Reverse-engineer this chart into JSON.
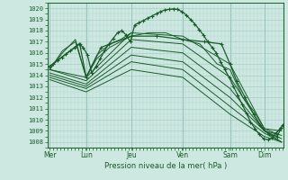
{
  "bg_color": "#cce8e0",
  "grid_color_minor": "#b8d8d0",
  "grid_color_major": "#a0c8c0",
  "line_color": "#1a5c2a",
  "xlabel_text": "Pression niveau de la mer( hPa )",
  "yticks": [
    1008,
    1009,
    1010,
    1011,
    1012,
    1013,
    1014,
    1015,
    1016,
    1017,
    1018,
    1019,
    1020
  ],
  "ylim": [
    1007.5,
    1020.5
  ],
  "day_labels": [
    "Mer",
    "Lun",
    "Jeu",
    "Ven",
    "Sam",
    "Dim"
  ],
  "day_positions": [
    0.0,
    0.85,
    1.9,
    3.1,
    4.2,
    5.0
  ],
  "xlim": [
    -0.05,
    5.45
  ],
  "vline_positions": [
    0.0,
    0.85,
    1.9,
    3.1,
    4.2,
    5.0
  ],
  "lines": [
    {
      "x": [
        0.0,
        0.08,
        0.18,
        0.28,
        0.38,
        0.48,
        0.58,
        0.68,
        0.78,
        0.88,
        0.98,
        1.08,
        1.18,
        1.28,
        1.38,
        1.48,
        1.58,
        1.68,
        1.78,
        1.88,
        1.98,
        2.08,
        2.18,
        2.28,
        2.38,
        2.48,
        2.58,
        2.68,
        2.78,
        2.88,
        2.98,
        3.08,
        3.18,
        3.28,
        3.38,
        3.48,
        3.58,
        3.68,
        3.78,
        3.88,
        3.98,
        4.08,
        4.18,
        4.28,
        4.38,
        4.48,
        4.58,
        4.68,
        4.78,
        4.88,
        4.98,
        5.08,
        5.18,
        5.28,
        5.38
      ],
      "y": [
        1014.8,
        1015.0,
        1015.3,
        1015.6,
        1015.9,
        1016.2,
        1016.5,
        1016.8,
        1016.5,
        1015.8,
        1014.2,
        1014.8,
        1015.5,
        1016.2,
        1016.8,
        1017.3,
        1017.8,
        1018.0,
        1017.6,
        1017.0,
        1018.5,
        1018.7,
        1018.9,
        1019.1,
        1019.3,
        1019.5,
        1019.7,
        1019.85,
        1019.9,
        1019.95,
        1019.9,
        1019.7,
        1019.4,
        1019.0,
        1018.6,
        1018.1,
        1017.6,
        1017.0,
        1016.5,
        1016.0,
        1015.2,
        1014.5,
        1013.8,
        1013.0,
        1012.2,
        1011.4,
        1010.6,
        1009.8,
        1009.2,
        1008.7,
        1008.3,
        1008.2,
        1008.4,
        1008.8,
        1009.3
      ],
      "marker": "+",
      "ms": 2.5,
      "lw": 0.9
    },
    {
      "x": [
        0.0,
        0.85,
        1.9,
        3.1,
        4.2,
        5.0,
        5.4
      ],
      "y": [
        1014.5,
        1013.8,
        1017.8,
        1017.5,
        1015.0,
        1009.2,
        1009.0
      ],
      "marker": null,
      "ms": 0,
      "lw": 0.7
    },
    {
      "x": [
        0.0,
        0.85,
        1.9,
        3.1,
        4.2,
        5.0,
        5.4
      ],
      "y": [
        1014.5,
        1013.5,
        1017.2,
        1016.8,
        1013.8,
        1009.0,
        1008.6
      ],
      "marker": null,
      "ms": 0,
      "lw": 0.7
    },
    {
      "x": [
        0.0,
        0.85,
        1.9,
        3.1,
        4.2,
        5.0,
        5.4
      ],
      "y": [
        1014.2,
        1013.2,
        1016.5,
        1016.0,
        1012.8,
        1009.0,
        1008.3
      ],
      "marker": null,
      "ms": 0,
      "lw": 0.7
    },
    {
      "x": [
        0.0,
        0.85,
        1.9,
        3.1,
        4.2,
        5.0,
        5.4
      ],
      "y": [
        1014.0,
        1013.0,
        1015.8,
        1015.2,
        1012.0,
        1009.0,
        1008.0
      ],
      "marker": null,
      "ms": 0,
      "lw": 0.7
    },
    {
      "x": [
        0.0,
        0.85,
        1.9,
        3.1,
        4.2,
        5.0,
        5.4
      ],
      "y": [
        1013.8,
        1012.8,
        1015.2,
        1014.5,
        1011.2,
        1008.8,
        1008.0
      ],
      "marker": null,
      "ms": 0,
      "lw": 0.7
    },
    {
      "x": [
        0.0,
        0.85,
        1.9,
        3.1,
        4.2,
        5.0,
        5.4
      ],
      "y": [
        1013.6,
        1012.5,
        1014.5,
        1013.8,
        1010.5,
        1008.5,
        1008.0
      ],
      "marker": null,
      "ms": 0,
      "lw": 0.7
    },
    {
      "x": [
        0.0,
        0.7,
        0.85,
        1.2,
        1.9,
        2.5,
        3.1,
        3.6,
        4.0,
        4.2,
        4.35,
        4.55,
        4.75,
        4.9,
        5.1,
        5.3,
        5.42
      ],
      "y": [
        1014.8,
        1016.8,
        1013.8,
        1016.5,
        1017.5,
        1017.5,
        1017.2,
        1017.0,
        1016.8,
        1015.0,
        1013.5,
        1012.0,
        1010.5,
        1009.5,
        1008.7,
        1008.5,
        1009.5
      ],
      "marker": "+",
      "ms": 2.5,
      "lw": 0.9
    },
    {
      "x": [
        0.0,
        0.3,
        0.6,
        0.85,
        1.1,
        1.4,
        1.65,
        1.9
      ],
      "y": [
        1014.5,
        1016.2,
        1017.0,
        1013.8,
        1015.8,
        1016.8,
        1017.2,
        1017.8
      ],
      "marker": null,
      "ms": 0,
      "lw": 0.7
    },
    {
      "x": [
        0.0,
        0.3,
        0.6,
        0.85,
        1.1,
        1.4,
        1.65,
        1.9,
        2.3,
        2.7,
        3.1,
        3.5,
        3.9,
        4.2,
        4.5,
        4.75,
        5.0,
        5.25,
        5.42
      ],
      "y": [
        1014.5,
        1016.0,
        1017.2,
        1013.8,
        1015.5,
        1016.5,
        1017.0,
        1017.5,
        1017.8,
        1017.8,
        1017.2,
        1016.8,
        1015.0,
        1014.5,
        1012.0,
        1010.8,
        1009.2,
        1008.8,
        1009.2
      ],
      "marker": null,
      "ms": 0,
      "lw": 0.7
    }
  ]
}
